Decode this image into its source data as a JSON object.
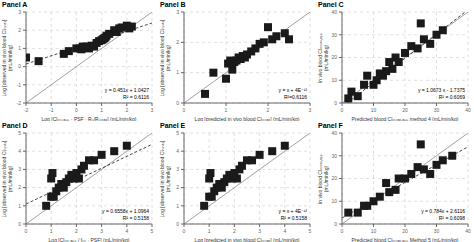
{
  "chart_data": [
    {
      "type": "scatter",
      "title": "Panel A",
      "xlabel": "Log [Clₘₜ,ₐₚₚ · PSF · Rₙ/Rₙₘₐₓ] (mL/min/kg)",
      "ylabel": "Log [observed in vivo blood Clₘₙₐₓ]\n(mL/min/kg)",
      "xlim": [
        -2,
        3
      ],
      "ylim": [
        -2,
        3
      ],
      "xticks": [
        -2,
        -1,
        0,
        1,
        2,
        3
      ],
      "yticks": [
        -2,
        -1,
        0,
        1,
        2,
        3
      ],
      "grid": true,
      "annotations": [
        "y = 0.451x + 1.0427",
        "R² = 0.6116"
      ],
      "series": [
        {
          "type": "line",
          "color": "#888888",
          "line_style": "solid",
          "x": [
            -2,
            3
          ],
          "values": [
            -2,
            3
          ]
        },
        {
          "type": "line",
          "color": "#1a1a1a",
          "line_style": "dashed",
          "x": [
            -2,
            3
          ],
          "values": [
            0.1407,
            2.3957
          ]
        },
        {
          "type": "scatter",
          "color": "#1a1a1a",
          "marker": "square",
          "x": [
            -2.0,
            -1.5,
            -0.5,
            -0.3,
            0.0,
            0.15,
            0.2,
            0.25,
            0.3,
            0.4,
            0.5,
            0.6,
            0.7,
            0.8,
            0.9,
            1.0,
            1.05,
            1.1,
            1.15,
            1.2,
            1.3,
            1.5,
            1.6,
            1.7,
            1.8,
            2.0,
            2.1,
            2.2
          ],
          "values": [
            0.5,
            0.3,
            0.7,
            0.85,
            1.0,
            1.0,
            0.95,
            1.1,
            1.05,
            1.1,
            1.0,
            1.15,
            1.1,
            1.3,
            1.4,
            1.45,
            1.5,
            1.55,
            1.6,
            1.7,
            1.8,
            2.0,
            1.9,
            2.1,
            2.15,
            2.25,
            2.1,
            2.2
          ]
        }
      ]
    },
    {
      "type": "scatter",
      "title": "Panel B",
      "xlabel": "Log [predicted in vivo blood Clₘₙₐₓ] (mL/min/kg)",
      "ylabel": "Log [observed in vivo blood Clₘₙₐₓ]\n(mL/min/kg)",
      "xlim": [
        0,
        3
      ],
      "ylim": [
        0,
        3
      ],
      "xticks": [
        0,
        1,
        2,
        3
      ],
      "yticks": [
        0,
        1,
        2,
        3
      ],
      "grid": true,
      "annotations": [
        "y = x + 4E⁻¹³",
        "R²=0.6116"
      ],
      "series": [
        {
          "type": "line",
          "color": "#888888",
          "line_style": "solid",
          "x": [
            0,
            3
          ],
          "values": [
            0,
            3
          ]
        },
        {
          "type": "scatter",
          "color": "#1a1a1a",
          "marker": "square",
          "x": [
            0.5,
            0.7,
            1.0,
            1.05,
            1.1,
            1.15,
            1.2,
            1.25,
            1.3,
            1.35,
            1.4,
            1.45,
            1.5,
            1.6,
            1.7,
            1.8,
            1.9,
            2.0,
            2.1,
            2.2,
            2.4,
            2.5
          ],
          "values": [
            0.3,
            1.0,
            0.8,
            1.3,
            1.4,
            1.1,
            1.35,
            1.4,
            1.5,
            1.45,
            1.55,
            1.5,
            1.6,
            1.7,
            1.8,
            1.95,
            2.0,
            2.5,
            2.1,
            2.2,
            2.3,
            2.1
          ]
        }
      ]
    },
    {
      "type": "scatter",
      "title": "Panel C",
      "xlabel": "Predicted blood Clₘₙₐₓ,ₐₚₚ method 4 (mL/min/kg)",
      "ylabel": "In vivo blood Clₘₙₐₓ,ₐₚₚ\n(mL/min/kg)",
      "xlim": [
        0,
        40
      ],
      "ylim": [
        0,
        40
      ],
      "xticks": [
        0,
        10,
        20,
        30,
        40
      ],
      "yticks": [
        0,
        10,
        20,
        30,
        40
      ],
      "grid": true,
      "annotations": [
        "y = 1.0673 x - 1.7375",
        "R² = 0.6069"
      ],
      "series": [
        {
          "type": "line",
          "color": "#888888",
          "line_style": "solid",
          "x": [
            0,
            40
          ],
          "values": [
            0,
            40
          ]
        },
        {
          "type": "line",
          "color": "#1a1a1a",
          "line_style": "dashed",
          "x": [
            1.62794,
            39.10569
          ],
          "values": [
            0,
            40
          ]
        },
        {
          "type": "scatter",
          "color": "#1a1a1a",
          "marker": "square",
          "x": [
            2,
            3,
            5,
            7,
            8,
            10,
            11,
            12,
            13,
            14,
            15,
            16,
            17,
            18,
            20,
            22,
            24,
            25,
            26,
            28,
            30,
            32
          ],
          "values": [
            2,
            5,
            3,
            8,
            12,
            8,
            10,
            13,
            12,
            14,
            18,
            15,
            20,
            18,
            22,
            25,
            24,
            35,
            28,
            26,
            30,
            32
          ]
        }
      ]
    },
    {
      "type": "scatter",
      "title": "Panel D",
      "xlabel": "Log [Clₘₜ,ₐₚₚ / fₙₙ · PSF] (mL/min/kg)",
      "ylabel": "Log [observed in vivo blood Clₘₙₐₓ]\n(mL/min/kg)",
      "xlim": [
        0,
        5
      ],
      "ylim": [
        0,
        5
      ],
      "xticks": [
        0,
        1,
        2,
        3,
        4,
        5
      ],
      "yticks": [
        0,
        1,
        2,
        3,
        4,
        5
      ],
      "grid": true,
      "annotations": [
        "y = 0.6558x + 1.0964",
        "R² = 0.5158"
      ],
      "series": [
        {
          "type": "line",
          "color": "#888888",
          "line_style": "solid",
          "x": [
            0,
            5
          ],
          "values": [
            0,
            5
          ]
        },
        {
          "type": "line",
          "color": "#1a1a1a",
          "line_style": "dashed",
          "x": [
            0,
            5
          ],
          "values": [
            1.0964,
            4.3754
          ]
        },
        {
          "type": "scatter",
          "color": "#1a1a1a",
          "marker": "square",
          "x": [
            0.8,
            1.0,
            1.0,
            1.05,
            1.1,
            1.2,
            1.3,
            1.4,
            1.5,
            1.6,
            1.7,
            1.8,
            1.9,
            2.0,
            2.1,
            2.2,
            2.3,
            2.5,
            2.7,
            3.0,
            3.5,
            4.0
          ],
          "values": [
            1.0,
            1.5,
            2.5,
            2.8,
            1.5,
            1.8,
            2.0,
            2.2,
            2.0,
            2.3,
            2.5,
            2.7,
            2.5,
            2.8,
            2.5,
            3.0,
            3.2,
            3.5,
            3.5,
            3.8,
            4.0,
            4.3
          ]
        }
      ]
    },
    {
      "type": "scatter",
      "title": "Panel E",
      "xlabel": "Log [predicted in vivo blood Clₘₙₐₓ] (mL/min/kg)",
      "ylabel": "Log [observed in vivo blood Clₘₙₐₓ]\n(mL/min/kg)",
      "xlim": [
        0,
        5
      ],
      "ylim": [
        0,
        5
      ],
      "xticks": [
        0,
        1,
        2,
        3,
        4,
        5
      ],
      "yticks": [
        0,
        1,
        2,
        3,
        4,
        5
      ],
      "grid": true,
      "annotations": [
        "y = x + 4E⁻¹³",
        "R² = 0.5158"
      ],
      "series": [
        {
          "type": "line",
          "color": "#888888",
          "line_style": "solid",
          "x": [
            0,
            5
          ],
          "values": [
            0,
            5
          ]
        },
        {
          "type": "scatter",
          "color": "#1a1a1a",
          "marker": "square",
          "x": [
            0.8,
            1.0,
            1.0,
            1.05,
            1.1,
            1.2,
            1.3,
            1.4,
            1.5,
            1.6,
            1.7,
            1.8,
            1.9,
            2.0,
            2.1,
            2.2,
            2.3,
            2.5,
            2.7,
            3.0,
            3.5,
            4.0
          ],
          "values": [
            1.0,
            1.5,
            2.5,
            2.8,
            1.5,
            1.8,
            2.0,
            2.2,
            2.0,
            2.3,
            2.5,
            2.7,
            2.5,
            2.8,
            2.5,
            3.0,
            3.2,
            3.5,
            3.5,
            3.8,
            4.0,
            4.3
          ]
        }
      ]
    },
    {
      "type": "scatter",
      "title": "Panel F",
      "xlabel": "Predicted blood Clₘₙₐₓ,ₐₚₚ Method 5 (mL/min/kg)",
      "ylabel": "In vivo blood Clₘₙₐₓ,ₐₚₚ\n(mL/min/kg)",
      "xlim": [
        0,
        40
      ],
      "ylim": [
        0,
        40
      ],
      "xticks": [
        0,
        10,
        20,
        30,
        40
      ],
      "yticks": [
        0,
        10,
        20,
        30,
        40
      ],
      "grid": true,
      "annotations": [
        "y = 0.784x + 2.6116",
        "R² = 0.6098"
      ],
      "series": [
        {
          "type": "line",
          "color": "#888888",
          "line_style": "solid",
          "x": [
            0,
            40
          ],
          "values": [
            0,
            40
          ]
        },
        {
          "type": "line",
          "color": "#1a1a1a",
          "line_style": "dashed",
          "x": [
            0,
            40
          ],
          "values": [
            2.6116,
            33.9716
          ]
        },
        {
          "type": "scatter",
          "color": "#1a1a1a",
          "marker": "square",
          "x": [
            2,
            5,
            7,
            8,
            10,
            12,
            14,
            15,
            17,
            18,
            20,
            22,
            24,
            25,
            26,
            28,
            30,
            32,
            35
          ],
          "values": [
            5,
            5,
            8,
            8,
            10,
            12,
            18,
            14,
            15,
            20,
            20,
            22,
            25,
            35,
            24,
            22,
            26,
            28,
            30
          ]
        }
      ]
    }
  ]
}
